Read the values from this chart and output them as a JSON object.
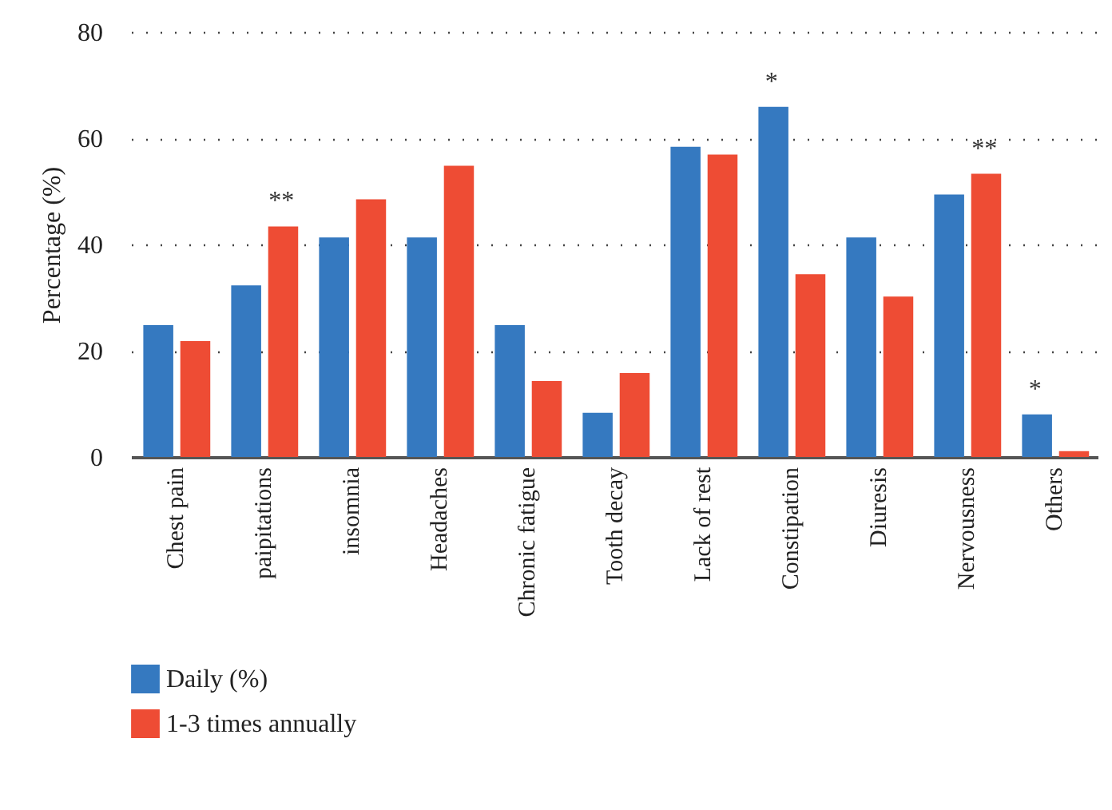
{
  "chart_data": {
    "type": "bar",
    "ylabel": "Percentage (%)",
    "categories": [
      "Chest pain",
      "paipitations",
      "insomnia",
      "Headaches",
      "Chronic fatigue",
      "Tooth decay",
      "Lack of rest",
      "Constipation",
      "Diuresis",
      "Nervousness",
      "Others"
    ],
    "series": [
      {
        "name": "Daily (%)",
        "color": "#3579c0",
        "values": [
          24.8,
          32.3,
          41.3,
          41.3,
          24.8,
          8.3,
          58.4,
          65.9,
          41.3,
          49.4,
          8.0
        ]
      },
      {
        "name": "1-3 times annually",
        "color": "#ee4c34",
        "values": [
          21.8,
          43.4,
          48.5,
          54.8,
          14.3,
          15.8,
          56.9,
          34.4,
          30.2,
          53.3,
          1.1
        ]
      }
    ],
    "annotations": [
      {
        "text": "**",
        "x": "paipitations",
        "y": 43.4
      },
      {
        "text": "*",
        "x": "Constipation",
        "y": 65.9
      },
      {
        "text": "**",
        "x": "Nervousness",
        "y": 53.3
      },
      {
        "text": "*",
        "x": "Others",
        "y": 8.0
      }
    ],
    "ylim": [
      0,
      80
    ],
    "yticks": [
      0,
      20,
      40,
      60,
      80
    ],
    "grid": "y",
    "legend": "bottom"
  }
}
